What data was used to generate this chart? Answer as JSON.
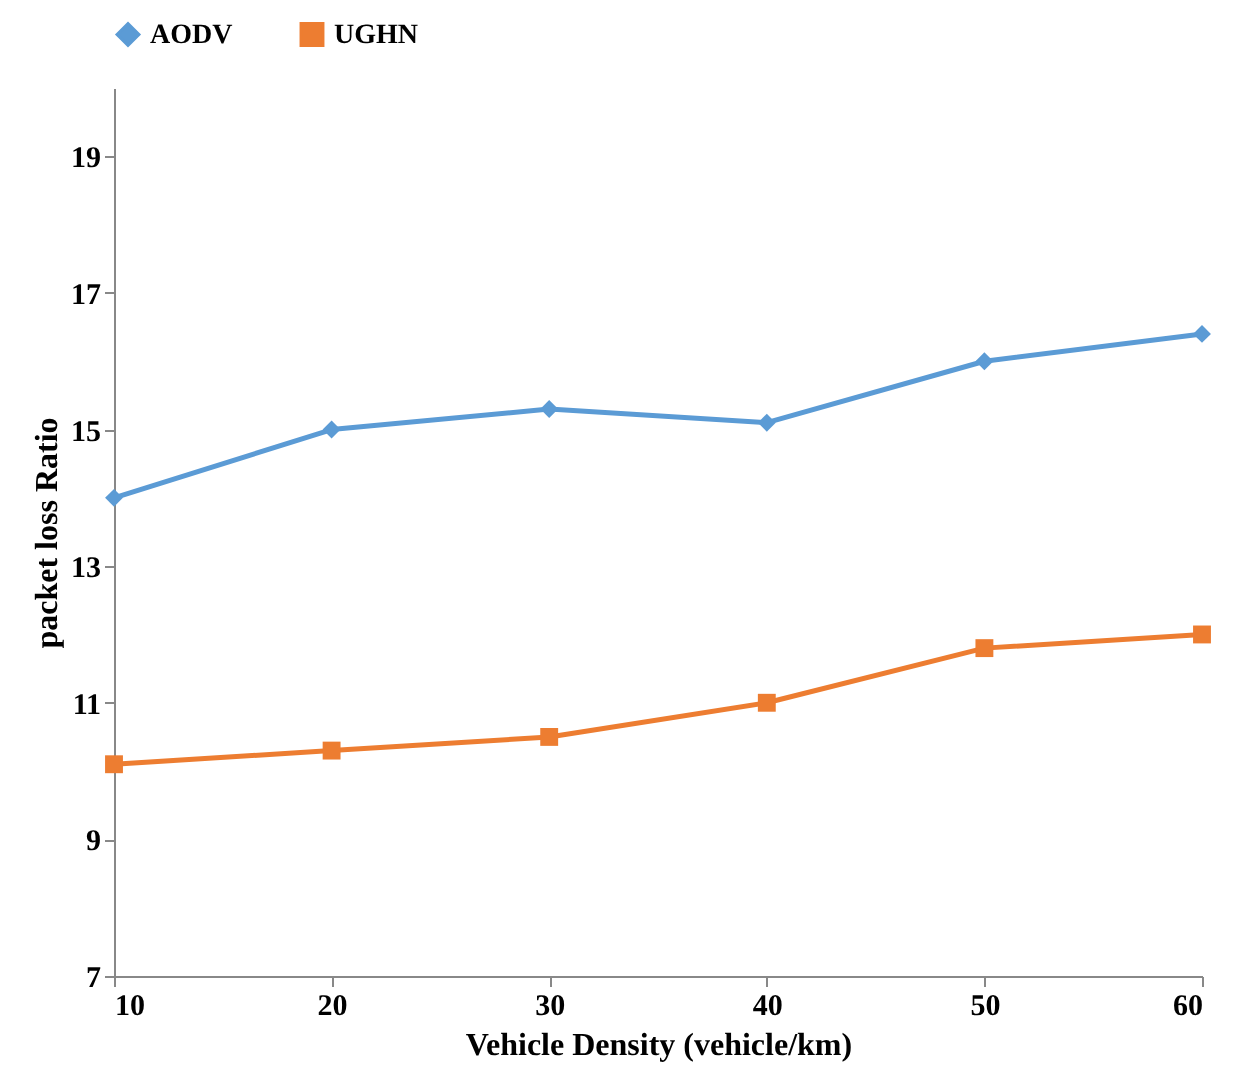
{
  "chart_data": {
    "type": "line",
    "xlabel": "Vehicle Density (vehicle/km)",
    "ylabel": "packet loss  Ratio",
    "x": [
      10,
      20,
      30,
      40,
      50,
      60
    ],
    "series": [
      {
        "name": "AODV",
        "color": "#5b9bd5",
        "marker": "diamond",
        "values": [
          14.0,
          15.0,
          15.3,
          15.1,
          16.0,
          16.4
        ]
      },
      {
        "name": "UGHN",
        "color": "#ed7d31",
        "marker": "square",
        "values": [
          10.1,
          10.3,
          10.5,
          11.0,
          11.8,
          12.0
        ]
      }
    ],
    "xlim": [
      10,
      60
    ],
    "xticks": [
      10,
      20,
      30,
      40,
      50,
      60
    ],
    "ylim": [
      7,
      20
    ],
    "yticks": [
      7,
      9,
      11,
      13,
      15,
      17,
      19
    ],
    "grid": false,
    "legend": "top"
  }
}
